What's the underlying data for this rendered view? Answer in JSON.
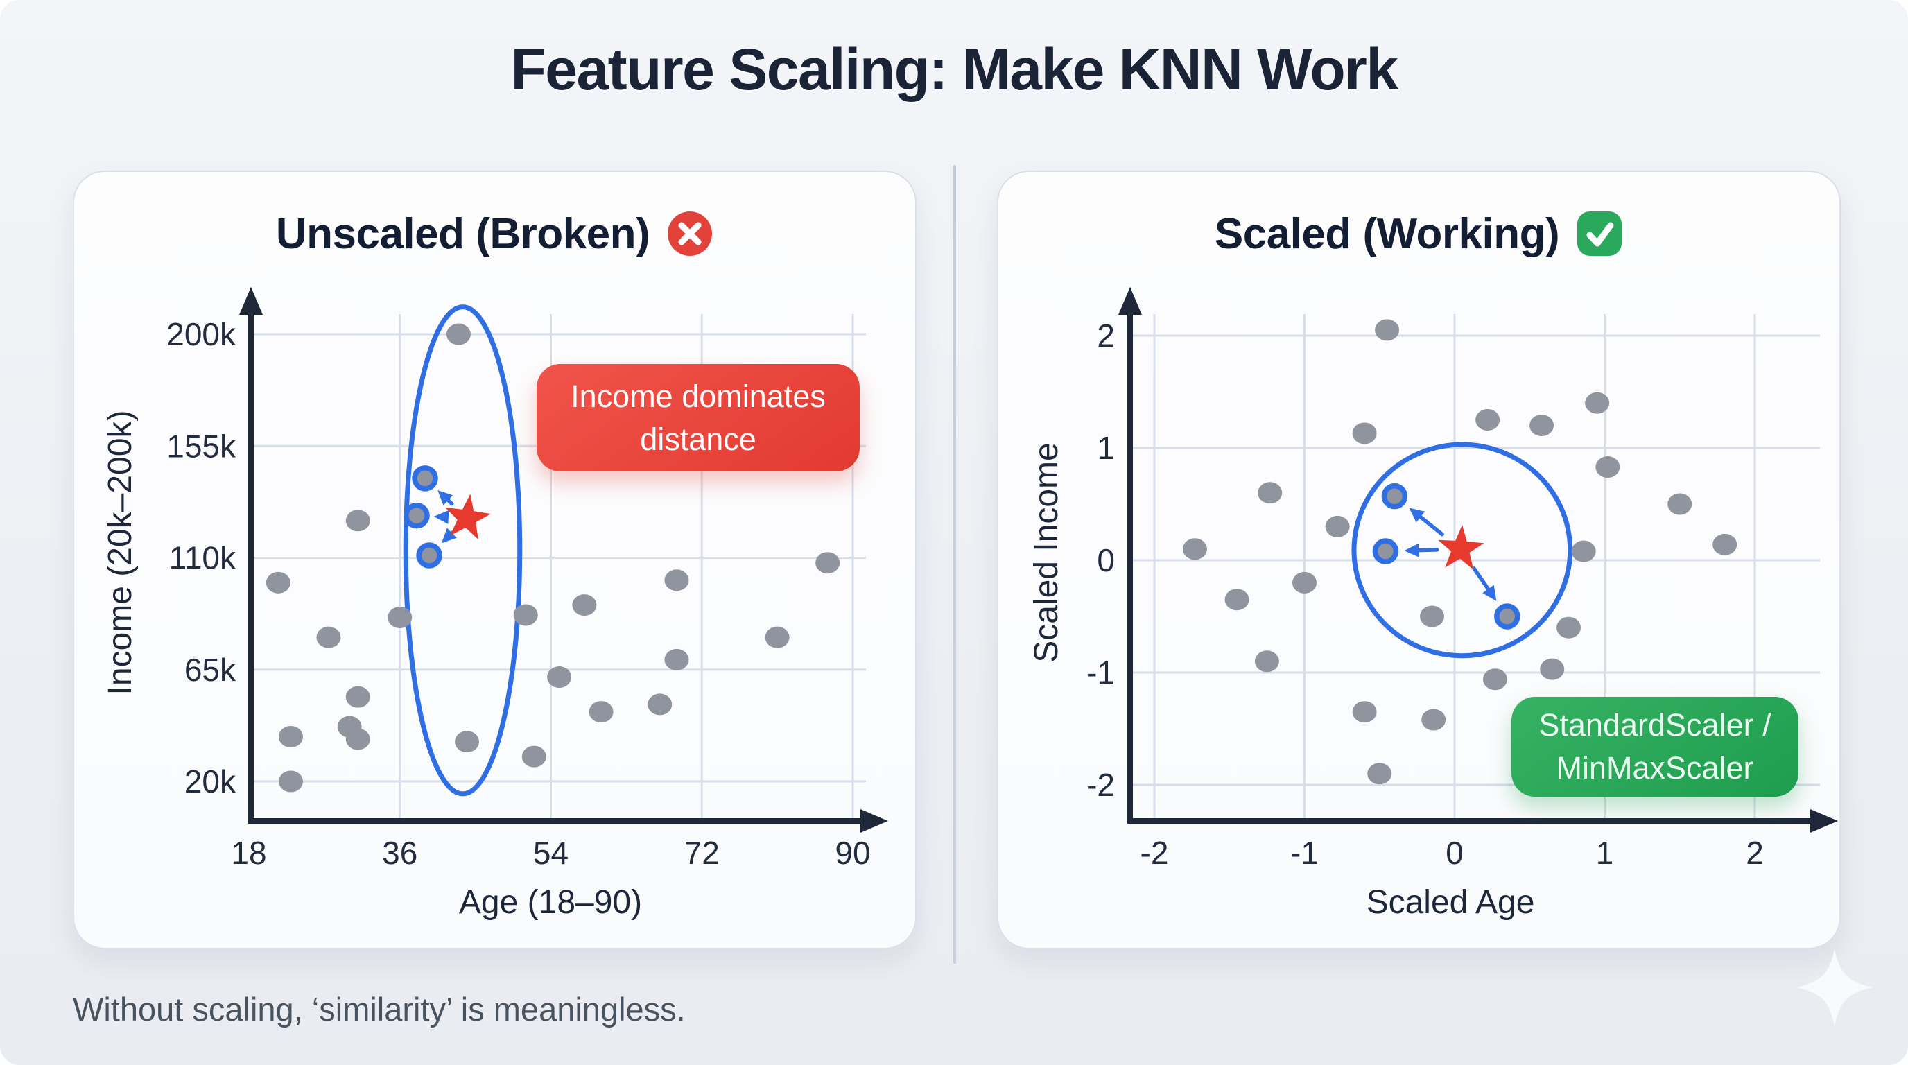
{
  "page": {
    "title": "Feature Scaling: Make KNN Work",
    "caption": "Without scaling, ‘similarity’ is meaningless."
  },
  "panels": {
    "left": {
      "title": "Unscaled (Broken)",
      "badge_icon": "x-circle-icon",
      "callout": {
        "line1": "Income dominates",
        "line2": "distance"
      }
    },
    "right": {
      "title": "Scaled (Working)",
      "badge_icon": "check-square-icon",
      "callout": {
        "line1": "StandardScaler /",
        "line2": "MinMaxScaler"
      }
    }
  },
  "colors": {
    "accent_blue": "#2f6fe3",
    "star_red": "#e63a2e",
    "dot_gray": "#8f949e",
    "callout_red": "#e8463c",
    "callout_green": "#2aa75c",
    "axis_dark": "#1e2838",
    "grid": "#d7dde9",
    "tick_text": "#232c3e"
  },
  "chart_data": [
    {
      "type": "scatter",
      "title": "Unscaled (Broken)",
      "xlabel": "Age (18–90)",
      "ylabel": "Income (20k–200k)",
      "xlim": [
        18,
        90
      ],
      "ylim_thousands": [
        20,
        200
      ],
      "xticks": [
        18,
        36,
        54,
        72,
        90
      ],
      "yticks": [
        20,
        65,
        110,
        155,
        200
      ],
      "ytick_labels": [
        "20k",
        "65k",
        "110k",
        "155k",
        "200k"
      ],
      "grid": true,
      "legend": "none",
      "annotation": "Income dominates distance",
      "points": [
        [
          43,
          200
        ],
        [
          31,
          125
        ],
        [
          21.5,
          100
        ],
        [
          27.5,
          78
        ],
        [
          36,
          86
        ],
        [
          51,
          87
        ],
        [
          58,
          91
        ],
        [
          69,
          101
        ],
        [
          87,
          108
        ],
        [
          81,
          78
        ],
        [
          69,
          69
        ],
        [
          55,
          62
        ],
        [
          60,
          48
        ],
        [
          67,
          51
        ],
        [
          31,
          54
        ],
        [
          30,
          42
        ],
        [
          31,
          37
        ],
        [
          23,
          38
        ],
        [
          23,
          20
        ],
        [
          44,
          36
        ],
        [
          52,
          30
        ]
      ],
      "query_point": [
        44,
        126
      ],
      "neighbors": [
        [
          39,
          142
        ],
        [
          38,
          127
        ],
        [
          39.5,
          111
        ]
      ],
      "highlight": {
        "shape": "ellipse",
        "cx": 43.5,
        "cy": 113,
        "rx": 6.8,
        "ry": 98
      }
    },
    {
      "type": "scatter",
      "title": "Scaled (Working)",
      "xlabel": "Scaled Age",
      "ylabel": "Scaled Income",
      "xlim": [
        -2,
        2
      ],
      "ylim": [
        -2,
        2
      ],
      "xticks": [
        -2,
        -1,
        0,
        1,
        2
      ],
      "yticks": [
        -2,
        -1,
        0,
        1,
        2
      ],
      "grid": true,
      "legend": "none",
      "annotation": "StandardScaler / MinMaxScaler",
      "points": [
        [
          -0.45,
          2.05
        ],
        [
          0.95,
          1.4
        ],
        [
          0.22,
          1.25
        ],
        [
          0.58,
          1.2
        ],
        [
          -0.6,
          1.13
        ],
        [
          1.02,
          0.83
        ],
        [
          -1.23,
          0.6
        ],
        [
          1.5,
          0.5
        ],
        [
          -0.78,
          0.3
        ],
        [
          1.8,
          0.14
        ],
        [
          -1.73,
          0.1
        ],
        [
          0.86,
          0.08
        ],
        [
          -1.0,
          -0.2
        ],
        [
          -1.45,
          -0.35
        ],
        [
          -0.15,
          -0.5
        ],
        [
          0.76,
          -0.6
        ],
        [
          -1.25,
          -0.9
        ],
        [
          0.65,
          -0.97
        ],
        [
          0.27,
          -1.06
        ],
        [
          -0.6,
          -1.35
        ],
        [
          -0.14,
          -1.42
        ],
        [
          -0.5,
          -1.9
        ]
      ],
      "query_point": [
        0.04,
        0.1
      ],
      "neighbors": [
        [
          -0.4,
          0.57
        ],
        [
          -0.46,
          0.08
        ],
        [
          0.35,
          -0.5
        ]
      ],
      "highlight": {
        "shape": "ellipse",
        "cx": 0.05,
        "cy": 0.09,
        "rx": 0.72,
        "ry": 0.94
      }
    }
  ]
}
